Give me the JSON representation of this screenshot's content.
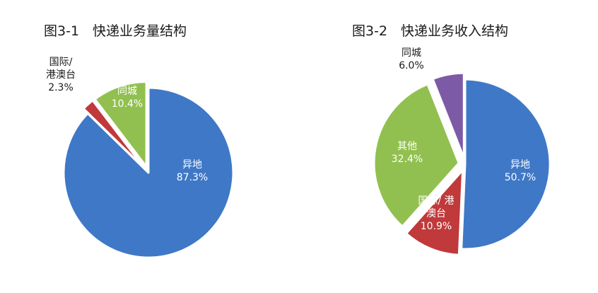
{
  "chart_data": [
    {
      "type": "pie",
      "title": "图3-1　快递业务量结构",
      "slices": [
        {
          "label": "异地",
          "value_label": "87.3%",
          "value": 87.3,
          "color": "#3f78c6",
          "exploded": false
        },
        {
          "label": "国际/港澳台",
          "label_lines": [
            "国际/",
            "港澳台"
          ],
          "value_label": "2.3%",
          "value": 2.3,
          "color": "#c0393b",
          "exploded": true
        },
        {
          "label": "同城",
          "value_label": "10.4%",
          "value": 10.4,
          "color": "#92c050",
          "exploded": true
        }
      ]
    },
    {
      "type": "pie",
      "title": "图3-2　快递业务收入结构",
      "slices": [
        {
          "label": "异地",
          "value_label": "50.7%",
          "value": 50.7,
          "color": "#3f78c6",
          "exploded": false
        },
        {
          "label": "国际/港澳台",
          "label_lines": [
            "国际/ 港",
            "澳台"
          ],
          "value_label": "10.9%",
          "value": 10.9,
          "color": "#c0393b",
          "exploded": true
        },
        {
          "label": "其他",
          "value_label": "32.4%",
          "value": 32.4,
          "color": "#92c050",
          "exploded": true
        },
        {
          "label": "同城",
          "value_label": "6.0%",
          "value": 6.0,
          "color": "#7d5aa6",
          "exploded": true
        }
      ]
    }
  ]
}
